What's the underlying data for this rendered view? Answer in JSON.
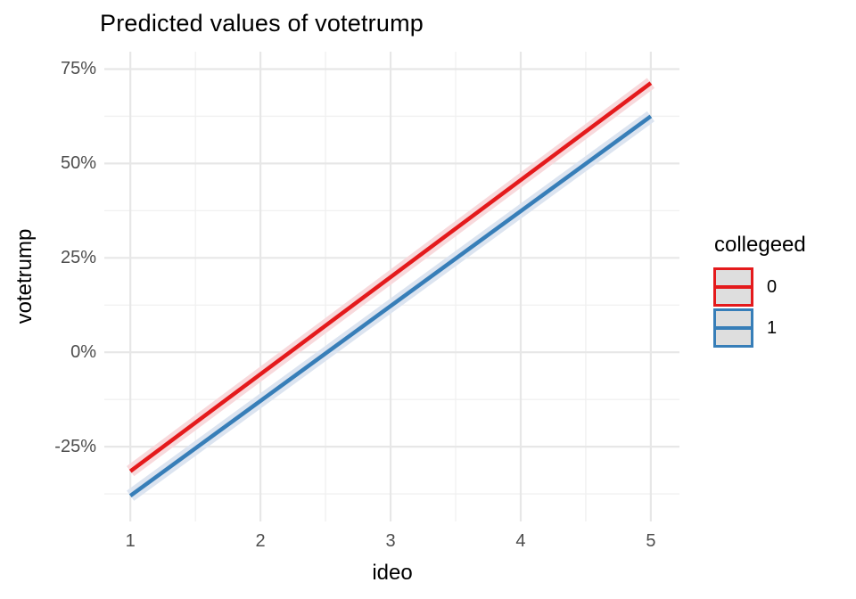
{
  "title": "Predicted values of votetrump",
  "colors": {
    "background": "#FFFFFF",
    "grid_major": "#E7E7E7",
    "grid_minor": "#F0F0F0",
    "tick_label": "#4D4D4D",
    "text": "#000000",
    "legend_key_fill": "#DEDEDE",
    "series_red": "#E41A1C",
    "series_blue": "#377EB8",
    "ribbon_red": "#F8D9DC",
    "ribbon_blue": "#DCE4F0"
  },
  "chart_data": {
    "type": "line",
    "title": "Predicted values of votetrump",
    "xlabel": "ideo",
    "ylabel": "votetrump",
    "legend_title": "collegeed",
    "legend_position": "right",
    "grid": true,
    "xlim": [
      0.8,
      5.22
    ],
    "ylim": [
      -44.8,
      79.6
    ],
    "x_tick_values": [
      1,
      2,
      3,
      4,
      5
    ],
    "x_tick_labels": [
      "1",
      "2",
      "3",
      "4",
      "5"
    ],
    "x_minor": [
      1.5,
      2.5,
      3.5,
      4.5
    ],
    "y_tick_values": [
      75,
      50,
      25,
      0,
      -25
    ],
    "y_tick_labels": [
      "75%",
      "50%",
      "25%",
      "0%",
      "-25%"
    ],
    "y_minor": [
      62.5,
      37.5,
      12.5,
      -12.5,
      -37.5
    ],
    "y_unit": "percent",
    "series": [
      {
        "name": "collegeed-0",
        "label": "0",
        "color": "#E41A1C",
        "ribbon_color": "#F8D9DC",
        "x": [
          1,
          5
        ],
        "y_percent": [
          -31.5,
          71.3
        ],
        "ci_halfwidth_percent": 1.6
      },
      {
        "name": "collegeed-1",
        "label": "1",
        "color": "#377EB8",
        "ribbon_color": "#DCE4F0",
        "x": [
          1,
          5
        ],
        "y_percent": [
          -38.0,
          62.5
        ],
        "ci_halfwidth_percent": 1.6
      }
    ]
  }
}
